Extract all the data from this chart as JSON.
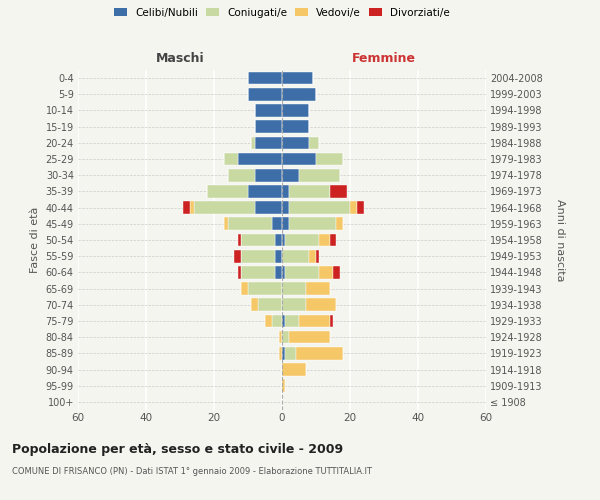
{
  "age_groups": [
    "100+",
    "95-99",
    "90-94",
    "85-89",
    "80-84",
    "75-79",
    "70-74",
    "65-69",
    "60-64",
    "55-59",
    "50-54",
    "45-49",
    "40-44",
    "35-39",
    "30-34",
    "25-29",
    "20-24",
    "15-19",
    "10-14",
    "5-9",
    "0-4"
  ],
  "birth_years": [
    "≤ 1908",
    "1909-1913",
    "1914-1918",
    "1919-1923",
    "1924-1928",
    "1929-1933",
    "1934-1938",
    "1939-1943",
    "1944-1948",
    "1949-1953",
    "1954-1958",
    "1959-1963",
    "1964-1968",
    "1969-1973",
    "1974-1978",
    "1979-1983",
    "1984-1988",
    "1989-1993",
    "1994-1998",
    "1999-2003",
    "2004-2008"
  ],
  "males": {
    "celibi": [
      0,
      0,
      0,
      0,
      0,
      0,
      0,
      0,
      2,
      2,
      2,
      3,
      8,
      10,
      8,
      13,
      8,
      8,
      8,
      10,
      10
    ],
    "coniugati": [
      0,
      0,
      0,
      0,
      0,
      3,
      7,
      10,
      10,
      10,
      10,
      13,
      18,
      12,
      8,
      4,
      1,
      0,
      0,
      0,
      0
    ],
    "vedovi": [
      0,
      0,
      0,
      1,
      1,
      2,
      2,
      2,
      0,
      0,
      0,
      1,
      1,
      0,
      0,
      0,
      0,
      0,
      0,
      0,
      0
    ],
    "divorziati": [
      0,
      0,
      0,
      0,
      0,
      0,
      0,
      0,
      1,
      2,
      1,
      0,
      2,
      0,
      0,
      0,
      0,
      0,
      0,
      0,
      0
    ]
  },
  "females": {
    "nubili": [
      0,
      0,
      0,
      1,
      0,
      1,
      0,
      0,
      1,
      0,
      1,
      2,
      2,
      2,
      5,
      10,
      8,
      8,
      8,
      10,
      9
    ],
    "coniugate": [
      0,
      0,
      0,
      3,
      2,
      4,
      7,
      7,
      10,
      8,
      10,
      14,
      18,
      12,
      12,
      8,
      3,
      0,
      0,
      0,
      0
    ],
    "vedove": [
      0,
      1,
      7,
      14,
      12,
      9,
      9,
      7,
      4,
      2,
      3,
      2,
      2,
      0,
      0,
      0,
      0,
      0,
      0,
      0,
      0
    ],
    "divorziate": [
      0,
      0,
      0,
      0,
      0,
      1,
      0,
      0,
      2,
      1,
      2,
      0,
      2,
      5,
      0,
      0,
      0,
      0,
      0,
      0,
      0
    ]
  },
  "colors": {
    "celibi": "#3d6ea8",
    "coniugati": "#c8d9a2",
    "vedovi": "#f5c766",
    "divorziati": "#cc2222"
  },
  "title": "Popolazione per età, sesso e stato civile - 2009",
  "subtitle": "COMUNE DI FRISANCO (PN) - Dati ISTAT 1° gennaio 2009 - Elaborazione TUTTITALIA.IT",
  "xlabel_left": "Maschi",
  "xlabel_right": "Femmine",
  "ylabel_left": "Fasce di età",
  "ylabel_right": "Anni di nascita",
  "xlim": 60,
  "bg_color": "#f5f5f0",
  "grid_color": "#ffffff",
  "legend_labels": [
    "Celibi/Nubili",
    "Coniugati/e",
    "Vedovi/e",
    "Divorziati/e"
  ]
}
